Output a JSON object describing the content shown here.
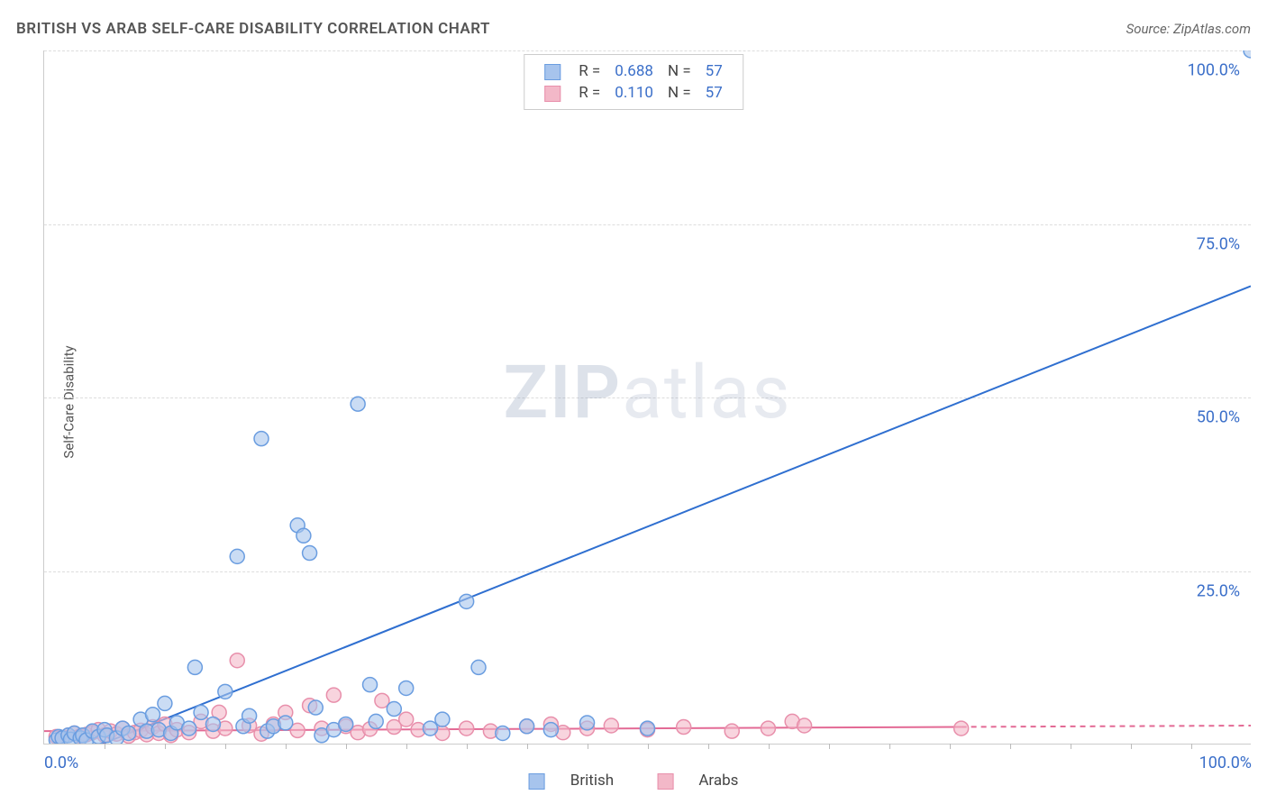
{
  "header": {
    "title": "BRITISH VS ARAB SELF-CARE DISABILITY CORRELATION CHART",
    "source_label": "Source: ZipAtlas.com"
  },
  "y_axis_label": "Self-Care Disability",
  "watermark": {
    "zip": "ZIP",
    "atlas": "atlas"
  },
  "chart": {
    "type": "scatter",
    "xlim": [
      0,
      100
    ],
    "ylim": [
      0,
      100
    ],
    "y_ticks": [
      25,
      50,
      75,
      100
    ],
    "y_tick_labels": [
      "25.0%",
      "50.0%",
      "75.0%",
      "100.0%"
    ],
    "x_tick_labels": {
      "left": "0.0%",
      "right": "100.0%"
    },
    "x_minor_ticks": [
      5,
      10,
      15,
      20,
      25,
      30,
      35,
      40,
      45,
      50,
      55,
      60,
      65,
      70,
      75,
      80,
      85,
      90,
      95
    ],
    "grid_color": "#dddddd",
    "background_color": "#ffffff",
    "axis_color": "#cccccc",
    "tick_label_color": "#3b6fc9",
    "label_fontsize": 15,
    "tick_fontsize": 18,
    "marker_radius": 8,
    "marker_stroke_width": 1.5,
    "trend_line_width": 2,
    "series": {
      "british": {
        "label": "British",
        "fill": "#a7c4ed",
        "stroke": "#6a9de0",
        "fill_opacity": 0.6,
        "trend_color": "#2f6fd0",
        "trend": {
          "x1": 2,
          "y1": -2,
          "x2": 100,
          "y2": 66
        },
        "R": "0.688",
        "N": "57",
        "points": [
          [
            1,
            0.5
          ],
          [
            1.2,
            1
          ],
          [
            1.5,
            0.8
          ],
          [
            2,
            1.2
          ],
          [
            2.2,
            0.6
          ],
          [
            2.5,
            1.5
          ],
          [
            3,
            0.8
          ],
          [
            3.2,
            1.2
          ],
          [
            3.5,
            0.5
          ],
          [
            4,
            1.8
          ],
          [
            4.5,
            1
          ],
          [
            5,
            2
          ],
          [
            5.2,
            1.2
          ],
          [
            6,
            0.8
          ],
          [
            6.5,
            2.2
          ],
          [
            7,
            1.5
          ],
          [
            8,
            3.5
          ],
          [
            8.5,
            1.8
          ],
          [
            9,
            4.2
          ],
          [
            9.5,
            2
          ],
          [
            10,
            5.8
          ],
          [
            10.5,
            1.5
          ],
          [
            11,
            3
          ],
          [
            12,
            2.2
          ],
          [
            12.5,
            11
          ],
          [
            13,
            4.5
          ],
          [
            14,
            2.8
          ],
          [
            15,
            7.5
          ],
          [
            16,
            27
          ],
          [
            16.5,
            2.5
          ],
          [
            17,
            4
          ],
          [
            18,
            44
          ],
          [
            18.5,
            1.8
          ],
          [
            19,
            2.5
          ],
          [
            20,
            3
          ],
          [
            21,
            31.5
          ],
          [
            21.5,
            30
          ],
          [
            22,
            27.5
          ],
          [
            22.5,
            5.2
          ],
          [
            23,
            1.2
          ],
          [
            24,
            2
          ],
          [
            25,
            2.8
          ],
          [
            26,
            49
          ],
          [
            27,
            8.5
          ],
          [
            27.5,
            3.2
          ],
          [
            29,
            5
          ],
          [
            30,
            8
          ],
          [
            32,
            2.2
          ],
          [
            33,
            3.5
          ],
          [
            35,
            20.5
          ],
          [
            36,
            11
          ],
          [
            38,
            1.5
          ],
          [
            40,
            2.5
          ],
          [
            42,
            2
          ],
          [
            45,
            3
          ],
          [
            50,
            2.2
          ],
          [
            100,
            100
          ]
        ]
      },
      "arabs": {
        "label": "Arabs",
        "fill": "#f3b8c8",
        "stroke": "#e88fab",
        "fill_opacity": 0.6,
        "trend_color": "#e36a95",
        "trend_dash": "6,5",
        "trend_solid_until_x": 76,
        "trend": {
          "x1": 0,
          "y1": 1.8,
          "x2": 100,
          "y2": 2.6
        },
        "R": "0.110",
        "N": "57",
        "points": [
          [
            1,
            1
          ],
          [
            1.5,
            0.8
          ],
          [
            2,
            1.2
          ],
          [
            2.5,
            1.5
          ],
          [
            3,
            1.1
          ],
          [
            3.5,
            1.3
          ],
          [
            4,
            1.6
          ],
          [
            4.5,
            2
          ],
          [
            5,
            1.2
          ],
          [
            5.5,
            1.8
          ],
          [
            6,
            1.4
          ],
          [
            6.5,
            2.2
          ],
          [
            7,
            1.1
          ],
          [
            7.5,
            1.6
          ],
          [
            8,
            1.9
          ],
          [
            8.5,
            1.3
          ],
          [
            9,
            2.4
          ],
          [
            9.5,
            1.5
          ],
          [
            10,
            2.8
          ],
          [
            10.5,
            1.2
          ],
          [
            11,
            2
          ],
          [
            12,
            1.6
          ],
          [
            13,
            3.2
          ],
          [
            14,
            1.8
          ],
          [
            14.5,
            4.5
          ],
          [
            15,
            2.2
          ],
          [
            16,
            12
          ],
          [
            17,
            2.6
          ],
          [
            18,
            1.4
          ],
          [
            19,
            2.8
          ],
          [
            20,
            4.5
          ],
          [
            21,
            1.9
          ],
          [
            22,
            5.5
          ],
          [
            23,
            2.2
          ],
          [
            24,
            7
          ],
          [
            25,
            2.5
          ],
          [
            26,
            1.6
          ],
          [
            27,
            2.1
          ],
          [
            28,
            6.2
          ],
          [
            29,
            2.4
          ],
          [
            30,
            3.5
          ],
          [
            31,
            2
          ],
          [
            33,
            1.5
          ],
          [
            35,
            2.2
          ],
          [
            37,
            1.8
          ],
          [
            40,
            2.5
          ],
          [
            42,
            2.8
          ],
          [
            43,
            1.6
          ],
          [
            45,
            2.2
          ],
          [
            47,
            2.6
          ],
          [
            50,
            2
          ],
          [
            53,
            2.4
          ],
          [
            57,
            1.8
          ],
          [
            60,
            2.2
          ],
          [
            62,
            3.2
          ],
          [
            63,
            2.6
          ],
          [
            76,
            2.2
          ]
        ]
      }
    }
  },
  "legend_top": {
    "rows": [
      {
        "swatch_fill": "#a7c4ed",
        "swatch_stroke": "#6a9de0",
        "R_label": "R =",
        "R": "0.688",
        "N_label": "N =",
        "N": "57"
      },
      {
        "swatch_fill": "#f3b8c8",
        "swatch_stroke": "#e88fab",
        "R_label": "R =",
        "R": "0.110",
        "N_label": "N =",
        "N": "57"
      }
    ]
  },
  "legend_bottom": {
    "items": [
      {
        "swatch_fill": "#a7c4ed",
        "swatch_stroke": "#6a9de0",
        "label": "British"
      },
      {
        "swatch_fill": "#f3b8c8",
        "swatch_stroke": "#e88fab",
        "label": "Arabs"
      }
    ]
  }
}
